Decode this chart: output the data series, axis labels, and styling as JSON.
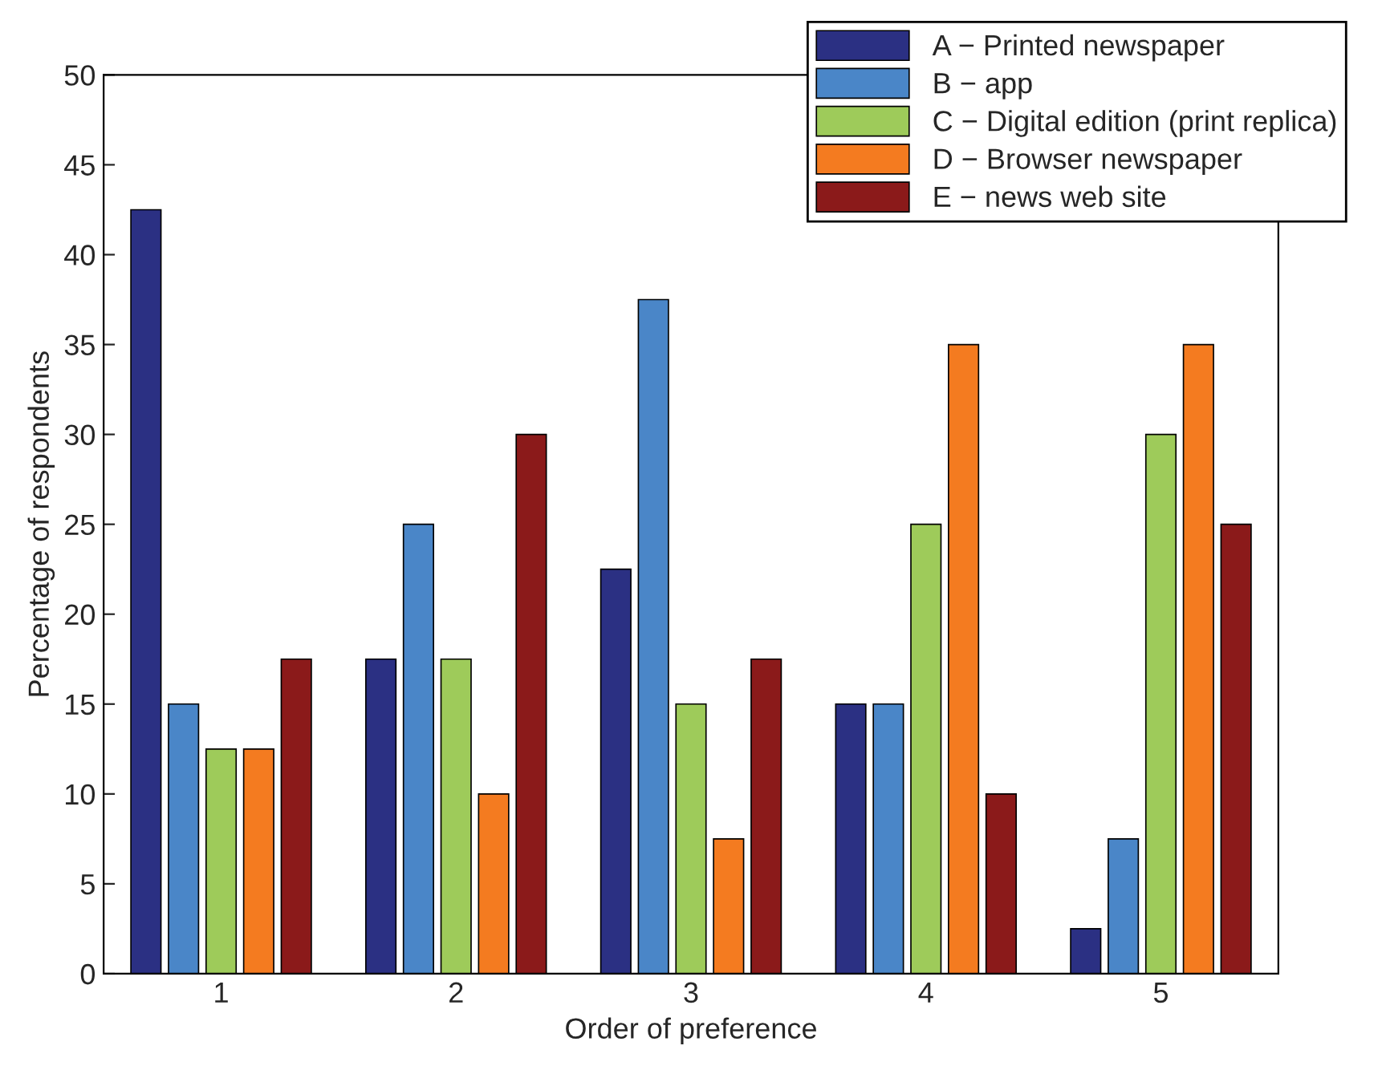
{
  "chart_data": {
    "type": "bar",
    "xlabel": "Order of preference",
    "ylabel": "Percentage of respondents",
    "categories": [
      "1",
      "2",
      "3",
      "4",
      "5"
    ],
    "series": [
      {
        "name": "A − Printed newspaper",
        "color": "#2b3083",
        "values": [
          42.5,
          17.5,
          22.5,
          15,
          2.5
        ]
      },
      {
        "name": "B − app",
        "color": "#4a86c8",
        "values": [
          15,
          25,
          37.5,
          15,
          7.5
        ]
      },
      {
        "name": "C − Digital edition (print replica)",
        "color": "#9ecb5a",
        "values": [
          12.5,
          17.5,
          15,
          25,
          30
        ]
      },
      {
        "name": "D − Browser newspaper",
        "color": "#f47b20",
        "values": [
          12.5,
          10,
          7.5,
          35,
          35
        ]
      },
      {
        "name": "E − news web site",
        "color": "#8b1a1a",
        "values": [
          17.5,
          30,
          17.5,
          10,
          25
        ]
      }
    ],
    "ylim": [
      0,
      50
    ],
    "yticks": [
      0,
      5,
      10,
      15,
      20,
      25,
      30,
      35,
      40,
      45,
      50
    ],
    "grid": false,
    "legend": "top right"
  }
}
